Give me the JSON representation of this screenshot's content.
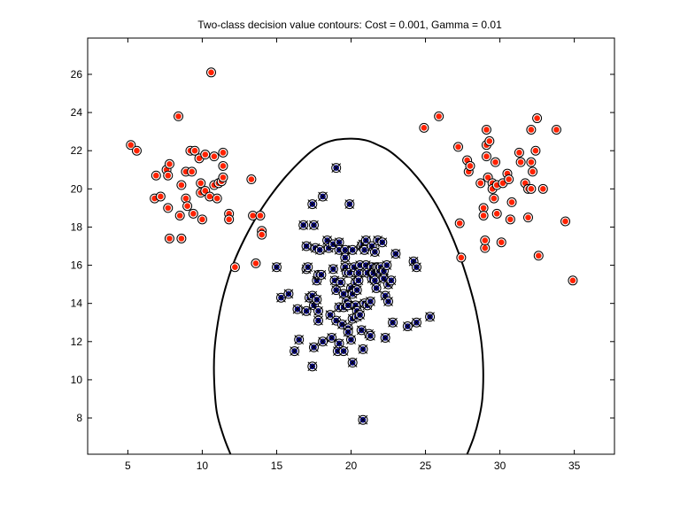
{
  "chart_data": {
    "type": "scatter",
    "title": "Two-class decision value contours: Cost = 0.001, Gamma =  0.01",
    "xlabel": "",
    "ylabel": "",
    "xlim": [
      2.3,
      37.7
    ],
    "ylim": [
      6.1,
      27.9
    ],
    "xticks": [
      5,
      10,
      15,
      20,
      25,
      30,
      35
    ],
    "yticks": [
      8,
      10,
      12,
      14,
      16,
      18,
      20,
      22,
      24,
      26
    ],
    "grid": false,
    "box": true,
    "colors": {
      "class_a": "#ff2200",
      "class_b": "#0a0a8c",
      "contour": "#000000"
    },
    "series": [
      {
        "marker": "red-filled-circle",
        "points": [
          [
            5.2,
            22.3
          ],
          [
            5.6,
            22.0
          ],
          [
            6.9,
            20.7
          ],
          [
            7.6,
            21.0
          ],
          [
            7.7,
            20.7
          ],
          [
            7.8,
            21.3
          ],
          [
            6.8,
            19.5
          ],
          [
            7.2,
            19.6
          ],
          [
            7.7,
            19.0
          ],
          [
            7.8,
            17.4
          ],
          [
            8.4,
            23.8
          ],
          [
            8.5,
            18.6
          ],
          [
            8.6,
            17.4
          ],
          [
            8.6,
            20.2
          ],
          [
            8.9,
            19.5
          ],
          [
            8.9,
            20.9
          ],
          [
            9.0,
            19.1
          ],
          [
            9.2,
            22.0
          ],
          [
            9.3,
            20.9
          ],
          [
            9.4,
            18.7
          ],
          [
            9.5,
            22.0
          ],
          [
            9.8,
            21.6
          ],
          [
            9.9,
            20.3
          ],
          [
            9.9,
            19.8
          ],
          [
            10.0,
            18.4
          ],
          [
            10.2,
            21.8
          ],
          [
            10.2,
            19.9
          ],
          [
            10.5,
            19.6
          ],
          [
            10.6,
            26.1
          ],
          [
            10.8,
            21.7
          ],
          [
            10.8,
            20.2
          ],
          [
            11.0,
            19.5
          ],
          [
            11.1,
            20.3
          ],
          [
            11.3,
            20.4
          ],
          [
            11.4,
            20.6
          ],
          [
            11.4,
            21.2
          ],
          [
            11.4,
            21.9
          ],
          [
            11.8,
            18.7
          ],
          [
            11.8,
            18.4
          ],
          [
            12.2,
            15.9
          ],
          [
            13.3,
            20.5
          ],
          [
            13.4,
            18.6
          ],
          [
            13.6,
            16.1
          ],
          [
            13.9,
            18.6
          ],
          [
            14.0,
            17.8
          ],
          [
            14.0,
            17.6
          ],
          [
            24.9,
            23.2
          ],
          [
            25.9,
            23.8
          ],
          [
            27.2,
            22.2
          ],
          [
            27.3,
            18.2
          ],
          [
            27.4,
            16.4
          ],
          [
            27.8,
            21.5
          ],
          [
            27.9,
            20.9
          ],
          [
            28.0,
            21.2
          ],
          [
            28.7,
            20.3
          ],
          [
            28.9,
            19.0
          ],
          [
            28.9,
            18.6
          ],
          [
            29.0,
            16.9
          ],
          [
            29.0,
            17.3
          ],
          [
            29.1,
            21.7
          ],
          [
            29.1,
            22.3
          ],
          [
            29.1,
            23.1
          ],
          [
            29.2,
            20.6
          ],
          [
            29.3,
            22.5
          ],
          [
            29.5,
            20.3
          ],
          [
            29.5,
            20.0
          ],
          [
            29.6,
            19.5
          ],
          [
            29.7,
            21.4
          ],
          [
            29.8,
            20.2
          ],
          [
            29.8,
            18.7
          ],
          [
            30.1,
            17.2
          ],
          [
            30.2,
            20.3
          ],
          [
            30.5,
            20.8
          ],
          [
            30.6,
            20.5
          ],
          [
            30.7,
            18.4
          ],
          [
            30.8,
            19.3
          ],
          [
            31.3,
            21.9
          ],
          [
            31.4,
            21.4
          ],
          [
            31.7,
            20.3
          ],
          [
            31.9,
            20.0
          ],
          [
            31.9,
            18.5
          ],
          [
            32.1,
            20.0
          ],
          [
            32.1,
            21.4
          ],
          [
            32.1,
            23.1
          ],
          [
            32.2,
            20.9
          ],
          [
            32.4,
            22.0
          ],
          [
            32.5,
            23.7
          ],
          [
            32.6,
            16.5
          ],
          [
            32.9,
            20.0
          ],
          [
            33.8,
            23.1
          ],
          [
            34.4,
            18.3
          ],
          [
            34.9,
            15.2
          ]
        ]
      },
      {
        "marker": "blue-filled-circle-x",
        "points": [
          [
            15.0,
            15.9
          ],
          [
            15.3,
            14.3
          ],
          [
            15.8,
            14.5
          ],
          [
            16.2,
            11.5
          ],
          [
            16.4,
            13.7
          ],
          [
            16.5,
            12.1
          ],
          [
            16.8,
            18.1
          ],
          [
            17.0,
            17.0
          ],
          [
            17.0,
            15.8
          ],
          [
            17.0,
            13.6
          ],
          [
            17.1,
            15.9
          ],
          [
            17.2,
            14.3
          ],
          [
            17.4,
            19.2
          ],
          [
            17.4,
            14.4
          ],
          [
            17.4,
            10.7
          ],
          [
            17.5,
            18.1
          ],
          [
            17.5,
            11.7
          ],
          [
            17.5,
            13.9
          ],
          [
            17.6,
            16.9
          ],
          [
            17.7,
            15.2
          ],
          [
            17.7,
            14.2
          ],
          [
            17.8,
            13.6
          ],
          [
            17.8,
            13.1
          ],
          [
            17.8,
            15.5
          ],
          [
            17.9,
            16.8
          ],
          [
            18.0,
            15.5
          ],
          [
            18.1,
            19.6
          ],
          [
            18.1,
            12.0
          ],
          [
            18.4,
            17.3
          ],
          [
            18.5,
            16.9
          ],
          [
            18.6,
            13.4
          ],
          [
            18.7,
            12.2
          ],
          [
            18.8,
            17.1
          ],
          [
            18.8,
            15.8
          ],
          [
            18.9,
            15.2
          ],
          [
            19.0,
            21.1
          ],
          [
            19.0,
            14.7
          ],
          [
            19.0,
            13.1
          ],
          [
            19.1,
            11.5
          ],
          [
            19.2,
            17.2
          ],
          [
            19.2,
            16.8
          ],
          [
            19.2,
            13.8
          ],
          [
            19.2,
            11.9
          ],
          [
            19.3,
            15.1
          ],
          [
            19.4,
            12.9
          ],
          [
            19.5,
            14.5
          ],
          [
            19.5,
            13.8
          ],
          [
            19.5,
            11.5
          ],
          [
            19.6,
            16.8
          ],
          [
            19.6,
            16.4
          ],
          [
            19.6,
            15.9
          ],
          [
            19.7,
            15.6
          ],
          [
            19.7,
            14.1
          ],
          [
            19.8,
            13.9
          ],
          [
            19.8,
            12.7
          ],
          [
            19.8,
            12.5
          ],
          [
            19.9,
            19.2
          ],
          [
            19.9,
            15.6
          ],
          [
            20.0,
            14.8
          ],
          [
            20.0,
            12.1
          ],
          [
            20.1,
            16.8
          ],
          [
            20.1,
            14.5
          ],
          [
            20.1,
            13.2
          ],
          [
            20.1,
            10.9
          ],
          [
            20.2,
            15.9
          ],
          [
            20.3,
            15.1
          ],
          [
            20.3,
            13.9
          ],
          [
            20.4,
            14.7
          ],
          [
            20.4,
            13.6
          ],
          [
            20.4,
            13.3
          ],
          [
            20.5,
            15.6
          ],
          [
            20.5,
            15.2
          ],
          [
            20.6,
            16.0
          ],
          [
            20.6,
            13.4
          ],
          [
            20.7,
            17.0
          ],
          [
            20.7,
            12.6
          ],
          [
            20.8,
            17.1
          ],
          [
            20.8,
            11.6
          ],
          [
            20.8,
            7.9
          ],
          [
            20.9,
            16.8
          ],
          [
            20.9,
            14.0
          ],
          [
            21.0,
            17.3
          ],
          [
            21.0,
            16.0
          ],
          [
            21.1,
            15.6
          ],
          [
            21.1,
            13.9
          ],
          [
            21.2,
            12.4
          ],
          [
            21.3,
            14.1
          ],
          [
            21.3,
            12.3
          ],
          [
            21.4,
            17.0
          ],
          [
            21.4,
            15.9
          ],
          [
            21.4,
            15.3
          ],
          [
            21.5,
            15.6
          ],
          [
            21.6,
            16.7
          ],
          [
            21.6,
            15.2
          ],
          [
            21.7,
            15.9
          ],
          [
            21.7,
            14.8
          ],
          [
            21.8,
            17.3
          ],
          [
            21.8,
            15.9
          ],
          [
            21.9,
            15.7
          ],
          [
            22.0,
            15.9
          ],
          [
            22.1,
            17.2
          ],
          [
            22.2,
            15.7
          ],
          [
            22.2,
            15.3
          ],
          [
            22.3,
            14.4
          ],
          [
            22.3,
            12.2
          ],
          [
            22.4,
            16.0
          ],
          [
            22.5,
            15.0
          ],
          [
            22.5,
            14.1
          ],
          [
            22.7,
            15.2
          ],
          [
            22.8,
            13.0
          ],
          [
            23.0,
            16.6
          ],
          [
            23.8,
            12.8
          ],
          [
            24.2,
            16.2
          ],
          [
            24.4,
            13.0
          ],
          [
            24.4,
            15.9
          ],
          [
            25.3,
            13.3
          ]
        ]
      }
    ],
    "contours": [
      {
        "level": 0,
        "x": [
          11.9,
          11.45,
          10.98,
          10.8,
          10.82,
          11.05,
          11.45,
          12.1,
          12.85,
          13.7,
          14.55,
          15.45,
          16.4,
          17.3,
          18.1,
          18.85,
          19.55,
          20.05,
          20.6,
          21.2,
          21.8,
          22.45,
          23.2,
          24.0,
          24.85,
          25.7,
          26.5,
          27.2,
          27.85,
          28.4,
          28.75,
          28.88,
          28.82,
          28.6,
          28.25,
          27.8
        ],
        "y": [
          6.1,
          7.0,
          8.3,
          10.0,
          11.5,
          13.0,
          14.5,
          16.1,
          17.4,
          18.6,
          19.6,
          20.5,
          21.3,
          21.95,
          22.35,
          22.55,
          22.62,
          22.63,
          22.6,
          22.5,
          22.3,
          22.05,
          21.6,
          21.0,
          20.2,
          19.2,
          18.0,
          16.7,
          15.2,
          13.6,
          12.0,
          10.5,
          9.0,
          8.0,
          7.0,
          6.1
        ]
      }
    ]
  }
}
